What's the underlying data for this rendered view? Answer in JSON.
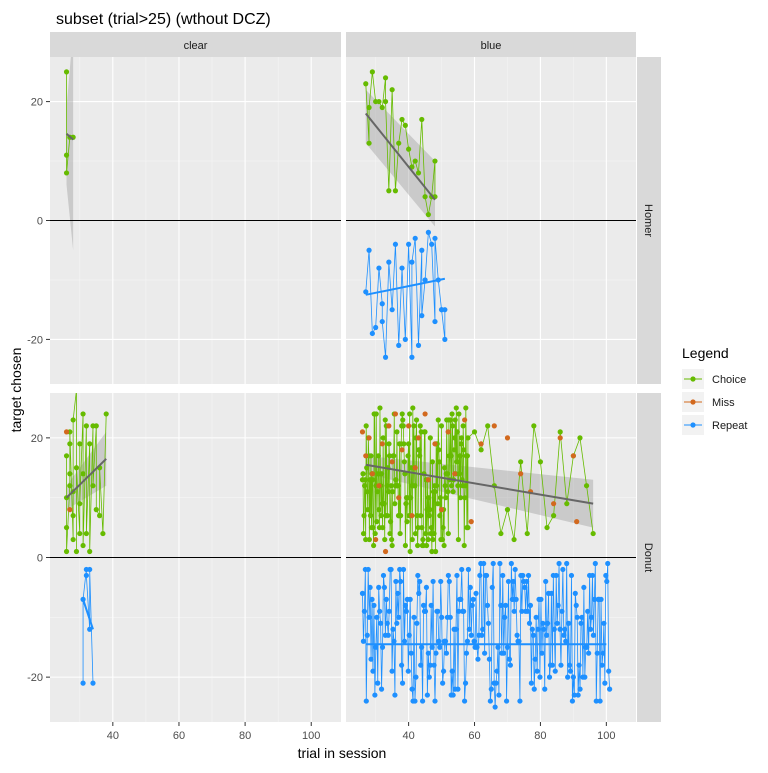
{
  "chart_data": {
    "type": "line",
    "title": "subset (trial>25) (wthout DCZ)",
    "xlabel": "trial in session",
    "ylabel": "target chosen",
    "xlim": [
      21,
      109
    ],
    "ylim": [
      -27.5,
      27.5
    ],
    "x_ticks": [
      40,
      60,
      80,
      100
    ],
    "y_ticks": [
      -20,
      0,
      20
    ],
    "col_facets": [
      "clear",
      "blue"
    ],
    "row_facets": [
      "Homer",
      "Donut"
    ],
    "legend": {
      "title": "Legend",
      "position": "right",
      "entries": [
        {
          "name": "Choice",
          "color": "#66BB00"
        },
        {
          "name": "Miss",
          "color": "#D2691E"
        },
        {
          "name": "Repeat",
          "color": "#1E90FF"
        }
      ]
    },
    "reference_line_y": 0,
    "panels": [
      {
        "row": "Homer",
        "col": "clear",
        "series": [
          {
            "name": "Choice",
            "points": [
              [
                26,
                25
              ],
              [
                26,
                11
              ],
              [
                26,
                8
              ],
              [
                27,
                14
              ],
              [
                28,
                14
              ]
            ]
          }
        ],
        "smooth": {
          "x": [
            26,
            28
          ],
          "y": [
            14.6,
            13.6
          ],
          "ci_low": [
            6,
            1
          ],
          "ci_high": [
            19,
            32
          ],
          "ci_low_end": -5
        }
      },
      {
        "row": "Homer",
        "col": "blue",
        "series": [
          {
            "name": "Choice",
            "points": [
              [
                27,
                23
              ],
              [
                28,
                13
              ],
              [
                28,
                19
              ],
              [
                29,
                25
              ],
              [
                30,
                20
              ],
              [
                31,
                20
              ],
              [
                32,
                19
              ],
              [
                33,
                24
              ],
              [
                33,
                20
              ],
              [
                34,
                5
              ],
              [
                35,
                22
              ],
              [
                36,
                5
              ],
              [
                37,
                13
              ],
              [
                38,
                17
              ],
              [
                39,
                16
              ],
              [
                40,
                12
              ],
              [
                41,
                9
              ],
              [
                42,
                10
              ],
              [
                43,
                8
              ],
              [
                44,
                17
              ],
              [
                45,
                4
              ],
              [
                46,
                1
              ],
              [
                47,
                4
              ],
              [
                48,
                10
              ],
              [
                48,
                4
              ]
            ]
          },
          {
            "name": "Repeat",
            "points": [
              [
                27,
                -12
              ],
              [
                28,
                -5
              ],
              [
                29,
                -19
              ],
              [
                30,
                -18
              ],
              [
                31,
                -8
              ],
              [
                32,
                -14
              ],
              [
                32,
                -17
              ],
              [
                33,
                -23
              ],
              [
                34,
                -7
              ],
              [
                35,
                -15
              ],
              [
                36,
                -4
              ],
              [
                37,
                -21
              ],
              [
                38,
                -8
              ],
              [
                39,
                -20
              ],
              [
                40,
                -4
              ],
              [
                41,
                -23
              ],
              [
                41,
                -7
              ],
              [
                42,
                -3
              ],
              [
                43,
                -21
              ],
              [
                44,
                -5
              ],
              [
                44,
                -16
              ],
              [
                45,
                -10
              ],
              [
                46,
                -2
              ],
              [
                47,
                -4
              ],
              [
                48,
                -17
              ],
              [
                48,
                -3
              ],
              [
                49,
                -10
              ],
              [
                50,
                -15
              ],
              [
                50,
                -15
              ],
              [
                51,
                -20
              ],
              [
                51,
                -15
              ]
            ]
          }
        ],
        "smooth_choice": {
          "x": [
            27,
            48
          ],
          "y": [
            18,
            3.5
          ],
          "ci_low": [
            13,
            -1
          ],
          "ci_high": [
            22,
            10
          ]
        },
        "smooth_repeat": {
          "x": [
            27,
            51
          ],
          "y": [
            -12.5,
            -9.8
          ]
        }
      },
      {
        "row": "Donut",
        "col": "clear",
        "series": [
          {
            "name": "Choice",
            "points": [
              [
                26,
                10
              ],
              [
                26,
                5
              ],
              [
                26,
                17
              ],
              [
                26,
                1
              ],
              [
                27,
                12
              ],
              [
                27,
                14
              ],
              [
                27,
                19
              ],
              [
                27,
                21
              ],
              [
                28,
                3
              ],
              [
                28,
                7
              ],
              [
                28,
                11
              ],
              [
                28,
                23
              ],
              [
                29,
                28
              ],
              [
                29,
                1
              ],
              [
                29,
                15
              ],
              [
                30,
                4
              ],
              [
                30,
                19
              ],
              [
                30,
                9
              ],
              [
                31,
                24
              ],
              [
                31,
                14
              ],
              [
                31,
                2
              ],
              [
                32,
                22
              ],
              [
                32,
                4
              ],
              [
                33,
                19
              ],
              [
                33,
                1
              ],
              [
                34,
                22
              ],
              [
                34,
                12
              ],
              [
                35,
                22
              ],
              [
                35,
                8
              ],
              [
                36,
                7
              ],
              [
                36,
                15
              ],
              [
                37,
                4
              ],
              [
                38,
                24
              ]
            ]
          },
          {
            "name": "Miss",
            "points": [
              [
                26,
                21
              ],
              [
                27,
                8
              ]
            ]
          },
          {
            "name": "Repeat",
            "points": [
              [
                31,
                -21
              ],
              [
                31,
                -7
              ],
              [
                32,
                -2
              ],
              [
                32,
                -3
              ],
              [
                33,
                -12
              ],
              [
                33,
                -2
              ],
              [
                34,
                -21
              ]
            ]
          }
        ],
        "smooth_choice": {
          "x": [
            26,
            38
          ],
          "y": [
            10,
            16.5
          ],
          "ci_low": [
            8,
            12
          ],
          "ci_high": [
            12,
            21
          ]
        },
        "smooth_repeat": {
          "x": [
            31,
            34
          ],
          "y": [
            -7,
            -12
          ]
        }
      },
      {
        "row": "Donut",
        "col": "blue",
        "smooth_choice": {
          "x": [
            27,
            96
          ],
          "y": [
            15.5,
            9
          ],
          "ci_low": [
            14,
            5
          ],
          "ci_high": [
            17,
            13
          ]
        },
        "smooth_repeat": {
          "x": [
            27,
            100
          ],
          "y": [
            -14.5,
            -14.5
          ]
        },
        "dense": true,
        "choice_x_range": [
          26,
          58
        ],
        "choice_tail": [
          [
            58,
            20
          ],
          [
            60,
            21
          ],
          [
            62,
            18
          ],
          [
            64,
            22
          ],
          [
            66,
            12
          ],
          [
            68,
            4
          ],
          [
            70,
            8
          ],
          [
            72,
            3
          ],
          [
            74,
            16
          ],
          [
            76,
            4
          ],
          [
            78,
            22
          ],
          [
            80,
            16
          ],
          [
            82,
            5
          ],
          [
            84,
            7
          ],
          [
            86,
            21
          ],
          [
            88,
            9
          ],
          [
            90,
            17
          ],
          [
            92,
            20
          ],
          [
            94,
            12
          ],
          [
            96,
            4
          ]
        ],
        "miss_points": [
          [
            26,
            21
          ],
          [
            27,
            17
          ],
          [
            28,
            20
          ],
          [
            29,
            14
          ],
          [
            30,
            3
          ],
          [
            31,
            12
          ],
          [
            32,
            19
          ],
          [
            33,
            1
          ],
          [
            34,
            22
          ],
          [
            35,
            16
          ],
          [
            36,
            24
          ],
          [
            37,
            10
          ],
          [
            38,
            18
          ],
          [
            40,
            22
          ],
          [
            41,
            7
          ],
          [
            42,
            15
          ],
          [
            43,
            20
          ],
          [
            45,
            24
          ],
          [
            46,
            13
          ],
          [
            48,
            19
          ],
          [
            50,
            8
          ],
          [
            52,
            21
          ],
          [
            54,
            14
          ],
          [
            57,
            23
          ],
          [
            59,
            6
          ],
          [
            62,
            19
          ],
          [
            66,
            22
          ],
          [
            70,
            20
          ],
          [
            74,
            14
          ],
          [
            77,
            11
          ],
          [
            84,
            9
          ],
          [
            86,
            20
          ],
          [
            90,
            17
          ],
          [
            91,
            6
          ]
        ],
        "repeat_x_range": [
          26,
          101
        ]
      }
    ]
  }
}
